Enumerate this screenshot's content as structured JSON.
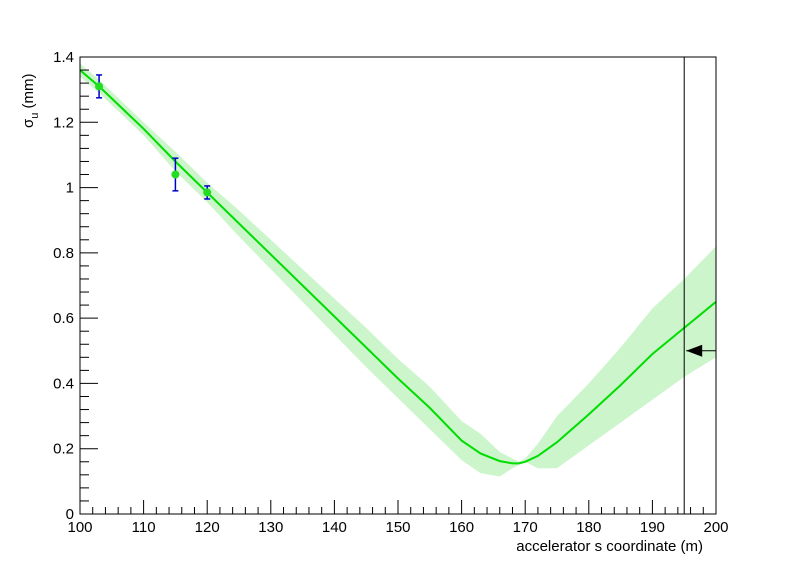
{
  "chart_data": {
    "type": "line",
    "title": "",
    "xlabel": "accelerator s coordinate (m)",
    "ylabel": {
      "main": "σ",
      "sub": "u",
      "unit": " (mm)"
    },
    "xlim": [
      100,
      200
    ],
    "ylim": [
      0,
      1.4
    ],
    "x_ticks": [
      100,
      110,
      120,
      130,
      140,
      150,
      160,
      170,
      180,
      190,
      200
    ],
    "y_ticks": [
      0,
      0.2,
      0.4,
      0.6,
      0.8,
      1,
      1.2,
      1.4
    ],
    "x_tick_labels": [
      "100",
      "110",
      "120",
      "130",
      "140",
      "150",
      "160",
      "170",
      "180",
      "190",
      "200"
    ],
    "y_tick_labels": [
      "0",
      "0.2",
      "0.4",
      "0.6",
      "0.8",
      "1",
      "1.2",
      "1.4"
    ],
    "grid": false,
    "colors": {
      "fit": "#00dd00",
      "band": "#ccf5cc",
      "points": "#22dd22",
      "errorbars": "#0000cc",
      "marker": "#000000"
    },
    "series": [
      {
        "x": [
          100,
          103,
          110,
          115,
          120,
          125,
          130,
          135,
          140,
          145,
          150,
          155,
          160,
          163,
          166,
          168,
          169,
          170,
          172,
          175,
          180,
          185,
          190,
          195,
          200
        ],
        "y": [
          1.36,
          1.31,
          1.18,
          1.08,
          0.985,
          0.89,
          0.795,
          0.7,
          0.605,
          0.51,
          0.415,
          0.325,
          0.225,
          0.185,
          0.162,
          0.155,
          0.155,
          0.16,
          0.178,
          0.22,
          0.305,
          0.395,
          0.49,
          0.57,
          0.65
        ]
      }
    ],
    "error_band": {
      "x": [
        100,
        103,
        110,
        115,
        120,
        125,
        130,
        135,
        140,
        145,
        150,
        155,
        160,
        163,
        166,
        168,
        169,
        170,
        172,
        175,
        180,
        185,
        190,
        195,
        200
      ],
      "lower": [
        1.34,
        1.29,
        1.16,
        1.05,
        0.955,
        0.85,
        0.75,
        0.65,
        0.55,
        0.45,
        0.355,
        0.26,
        0.165,
        0.125,
        0.115,
        0.14,
        0.15,
        0.16,
        0.14,
        0.14,
        0.21,
        0.28,
        0.35,
        0.42,
        0.48
      ],
      "upper": [
        1.38,
        1.33,
        1.2,
        1.11,
        1.015,
        0.93,
        0.84,
        0.75,
        0.66,
        0.57,
        0.475,
        0.39,
        0.285,
        0.245,
        0.19,
        0.17,
        0.16,
        0.17,
        0.215,
        0.3,
        0.4,
        0.51,
        0.63,
        0.72,
        0.82
      ]
    },
    "points": [
      {
        "x": 103,
        "y": 1.31,
        "err": 0.035
      },
      {
        "x": 115,
        "y": 1.04,
        "err": 0.05
      },
      {
        "x": 120,
        "y": 0.985,
        "err": 0.02
      }
    ],
    "vertical_line_x": 195,
    "arrow": {
      "y": 0.5,
      "direction": "left"
    }
  }
}
